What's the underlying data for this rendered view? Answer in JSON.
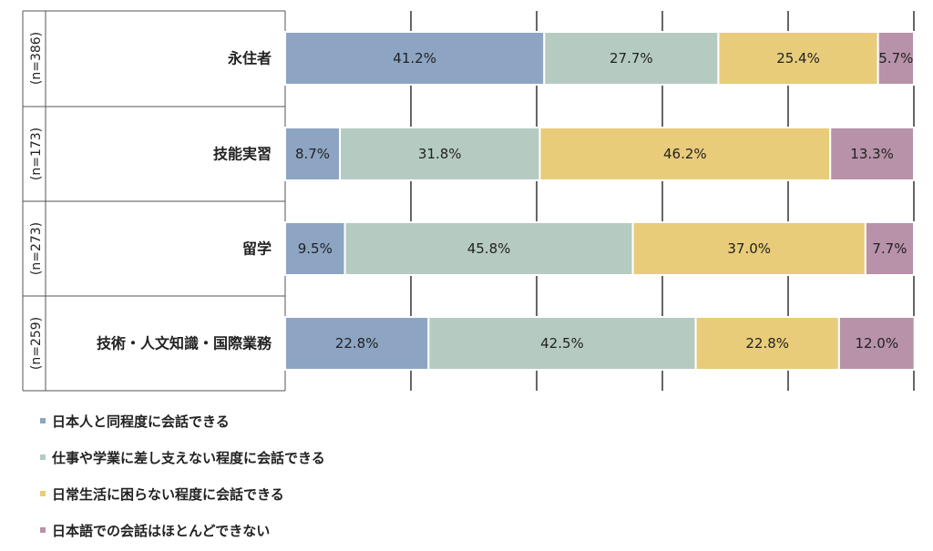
{
  "chart_data": {
    "type": "bar",
    "orientation": "horizontal",
    "stacked": true,
    "percent": true,
    "categories": [
      {
        "label": "永住者",
        "n": "(n=386)"
      },
      {
        "label": "技能実習",
        "n": "(n=173)"
      },
      {
        "label": "留学",
        "n": "(n=273)"
      },
      {
        "label": "技術・人文知識・国際業務",
        "n": "(n=259)"
      }
    ],
    "series": [
      {
        "name": "日本人と同程度に会話できる",
        "color": "#8DA5C3",
        "values": [
          41.2,
          8.7,
          9.5,
          22.8
        ]
      },
      {
        "name": "仕事や学業に差し支えない程度に会話できる",
        "color": "#B5CBC1",
        "values": [
          27.7,
          31.8,
          45.8,
          42.5
        ]
      },
      {
        "name": "日常生活に困らない程度に会話できる",
        "color": "#E8CC7A",
        "values": [
          25.4,
          46.2,
          37.0,
          22.8
        ]
      },
      {
        "name": "日本語での会話はほとんどできない",
        "color": "#B792A8",
        "values": [
          5.7,
          13.3,
          7.7,
          12.0
        ]
      }
    ],
    "data_labels": [
      [
        "41.2%",
        "27.7%",
        "25.4%",
        "5.7%"
      ],
      [
        "8.7%",
        "31.8%",
        "46.2%",
        "13.3%"
      ],
      [
        "9.5%",
        "45.8%",
        "37.0%",
        "7.7%"
      ],
      [
        "22.8%",
        "42.5%",
        "22.8%",
        "12.0%"
      ]
    ],
    "xlim": [
      0,
      100
    ],
    "gridlines": [
      20,
      40,
      60,
      80,
      100
    ],
    "legend_position": "bottom-left"
  }
}
